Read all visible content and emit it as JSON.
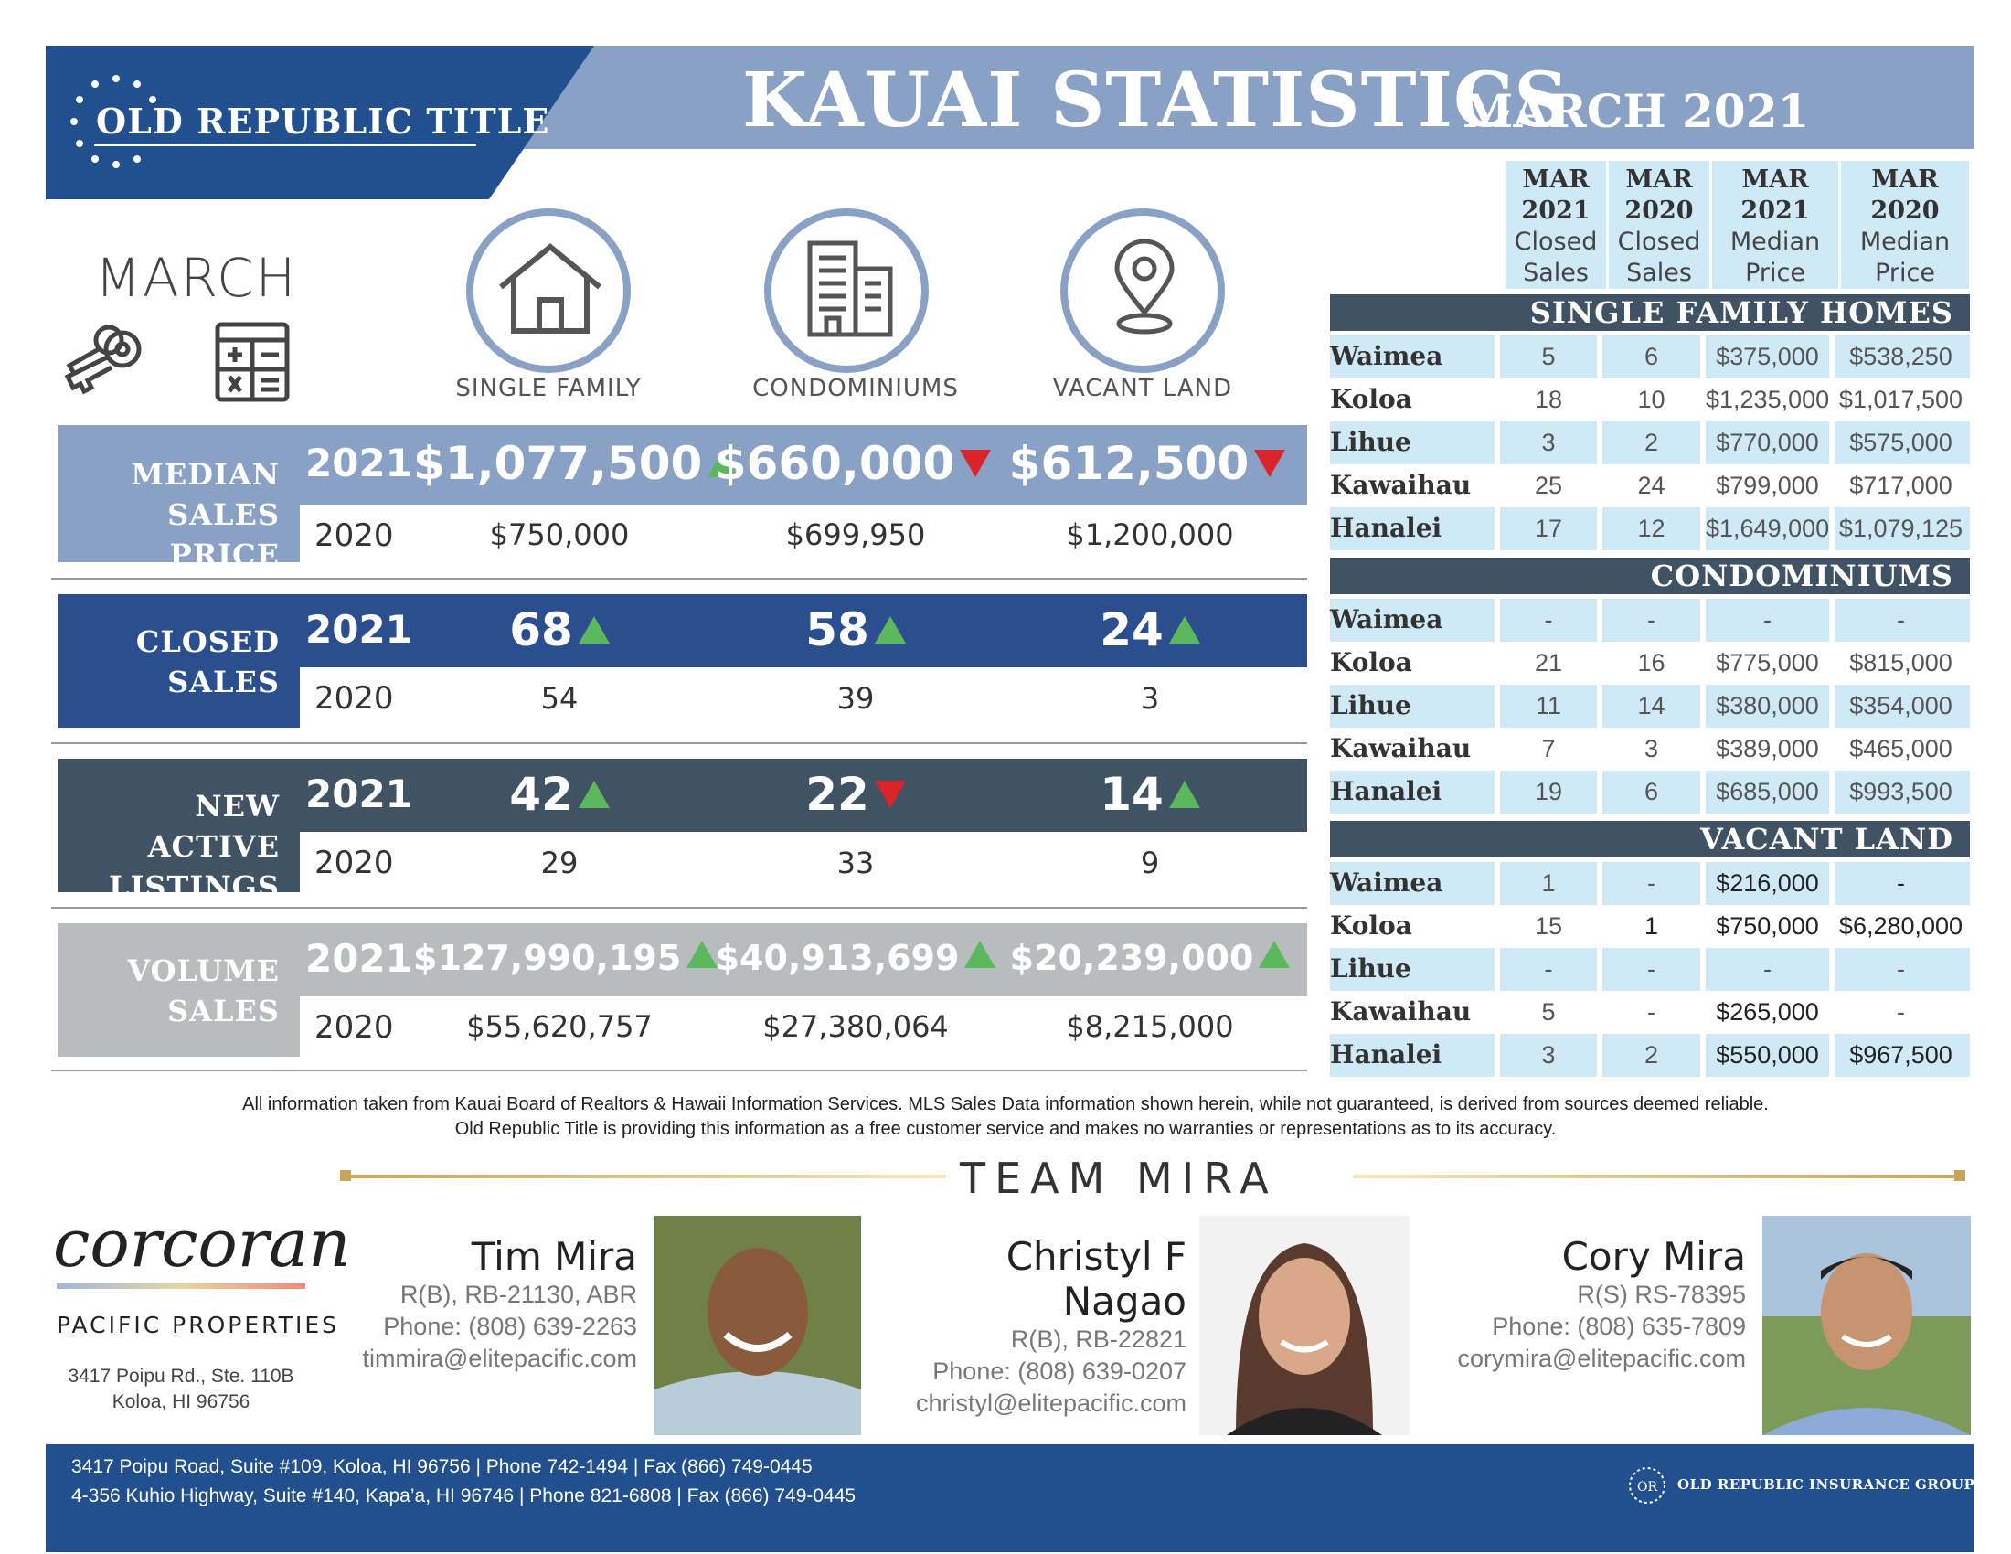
{
  "header": {
    "logo_text": "OLD REPUBLIC TITLE",
    "title": "KAUAI STATISTICS",
    "subtitle": "MARCH 2021"
  },
  "month_label": "MARCH",
  "categories": [
    {
      "label": "SINGLE FAMILY",
      "icon": "house-icon"
    },
    {
      "label": "CONDOMINIUMS",
      "icon": "building-icon"
    },
    {
      "label": "VACANT LAND",
      "icon": "map-pin-icon"
    }
  ],
  "blocks": [
    {
      "label_1": "MEDIAN",
      "label_2": "SALES PRICE",
      "year_2021": "2021",
      "year_2020": "2020",
      "v2021": [
        "$1,077,500",
        "$660,000",
        "$612,500"
      ],
      "trend": [
        "up",
        "down",
        "down"
      ],
      "v2020": [
        "$750,000",
        "$699,950",
        "$1,200,000"
      ],
      "color": "#8aa1c6"
    },
    {
      "label_1": "CLOSED",
      "label_2": "SALES",
      "year_2021": "2021",
      "year_2020": "2020",
      "v2021": [
        "68",
        "58",
        "24"
      ],
      "trend": [
        "up",
        "up",
        "up"
      ],
      "v2020": [
        "54",
        "39",
        "3"
      ],
      "color": "#2b4f8e"
    },
    {
      "label_1": "NEW ACTIVE",
      "label_2": "LISTINGS",
      "year_2021": "2021",
      "year_2020": "2020",
      "v2021": [
        "42",
        "22",
        "14"
      ],
      "trend": [
        "up",
        "down",
        "up"
      ],
      "v2020": [
        "29",
        "33",
        "9"
      ],
      "color": "#3f5365"
    },
    {
      "label_1": "VOLUME",
      "label_2": "SALES",
      "year_2021": "2021",
      "year_2020": "2020",
      "v2021": [
        "$127,990,195",
        "$40,913,699",
        "$20,239,000"
      ],
      "trend": [
        "up",
        "up",
        "up"
      ],
      "v2020": [
        "$55,620,757",
        "$27,380,064",
        "$8,215,000"
      ],
      "color": "#b9bcbd"
    }
  ],
  "table": {
    "columns": [
      {
        "top": "MAR",
        "year": "2021",
        "l1": "Closed",
        "l2": "Sales"
      },
      {
        "top": "MAR",
        "year": "2020",
        "l1": "Closed",
        "l2": "Sales"
      },
      {
        "top": "MAR",
        "year": "2021",
        "l1": "Median",
        "l2": "Price"
      },
      {
        "top": "MAR",
        "year": "2020",
        "l1": "Median",
        "l2": "Price"
      }
    ],
    "sections": [
      {
        "title": "SINGLE FAMILY HOMES",
        "rows": [
          {
            "name": "Waimea",
            "vals": [
              "5",
              "6",
              "$375,000",
              "$538,250"
            ]
          },
          {
            "name": "Koloa",
            "vals": [
              "18",
              "10",
              "$1,235,000",
              "$1,017,500"
            ]
          },
          {
            "name": "Lihue",
            "vals": [
              "3",
              "2",
              "$770,000",
              "$575,000"
            ]
          },
          {
            "name": "Kawaihau",
            "vals": [
              "25",
              "24",
              "$799,000",
              "$717,000"
            ]
          },
          {
            "name": "Hanalei",
            "vals": [
              "17",
              "12",
              "$1,649,000",
              "$1,079,125"
            ]
          }
        ]
      },
      {
        "title": "CONDOMINIUMS",
        "rows": [
          {
            "name": "Waimea",
            "vals": [
              "-",
              "-",
              "-",
              "-"
            ]
          },
          {
            "name": "Koloa",
            "vals": [
              "21",
              "16",
              "$775,000",
              "$815,000"
            ]
          },
          {
            "name": "Lihue",
            "vals": [
              "11",
              "14",
              "$380,000",
              "$354,000"
            ]
          },
          {
            "name": "Kawaihau",
            "vals": [
              "7",
              "3",
              "$389,000",
              "$465,000"
            ]
          },
          {
            "name": "Hanalei",
            "vals": [
              "19",
              "6",
              "$685,000",
              "$993,500"
            ]
          }
        ]
      },
      {
        "title": "VACANT LAND",
        "rows": [
          {
            "name": "Waimea",
            "vals": [
              "1",
              "-",
              "$216,000",
              "-"
            ]
          },
          {
            "name": "Koloa",
            "vals": [
              "15",
              "1",
              "$750,000",
              "$6,280,000"
            ]
          },
          {
            "name": "Lihue",
            "vals": [
              "-",
              "-",
              "-",
              "-"
            ]
          },
          {
            "name": "Kawaihau",
            "vals": [
              "5",
              "-",
              "$265,000",
              "-"
            ]
          },
          {
            "name": "Hanalei",
            "vals": [
              "3",
              "2",
              "$550,000",
              "$967,500"
            ]
          }
        ]
      }
    ]
  },
  "disclaimer": {
    "line1": "All information taken from Kauai Board of Realtors & Hawaii Information Services.  MLS Sales Data information shown herein, while not guaranteed, is derived from sources deemed reliable.",
    "line2": "Old Republic Title is providing this information as a free customer service and makes no warranties or representations as to its accuracy."
  },
  "team": {
    "title": "TEAM MIRA",
    "brand": "corcoran",
    "brand_sub": "PACIFIC PROPERTIES",
    "office_line1": "3417 Poipu Rd., Ste. 110B",
    "office_line2": "Koloa, HI 96756",
    "agents": [
      {
        "name": "Tim Mira",
        "license": "R(B), RB-21130, ABR",
        "phone": "Phone: (808) 639-2263",
        "email": "timmira@elitepacific.com"
      },
      {
        "name": "Christyl F Nagao",
        "license": "R(B), RB-22821",
        "phone": "Phone: (808) 639-0207",
        "email": "christyl@elitepacific.com"
      },
      {
        "name": "Cory Mira",
        "license": "R(S) RS-78395",
        "phone": "Phone: (808) 635-7809",
        "email": "corymira@elitepacific.com"
      }
    ]
  },
  "footer": {
    "line1": "3417 Poipu Road, Suite #109, Koloa, HI 96756 | Phone 742-1494 | Fax (866) 749-0445",
    "line2": "4-356 Kuhio Highway, Suite #140, Kapa’a, HI  96746 | Phone 821-6808 | Fax (866) 749-0445",
    "group": "OLD REPUBLIC INSURANCE GROUP"
  }
}
